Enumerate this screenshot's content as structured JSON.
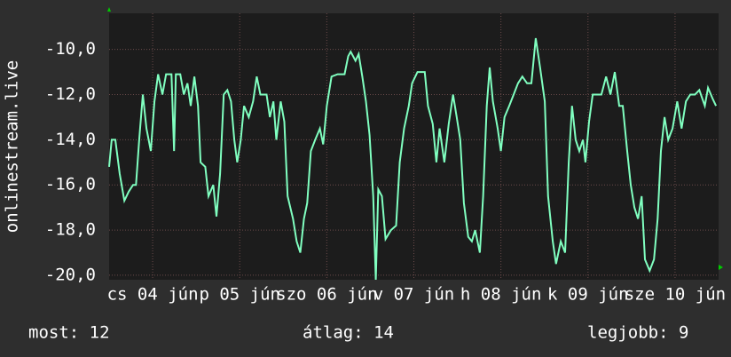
{
  "chart_data": {
    "type": "line",
    "ylabel": "onlinestream.live",
    "xlim": [
      0,
      168
    ],
    "ylim": [
      -20.2,
      -8.4
    ],
    "xticks": [
      {
        "value": 12,
        "label": "cs 04 jún"
      },
      {
        "value": 36,
        "label": "p 05 jún"
      },
      {
        "value": 60,
        "label": "szo 06 jún"
      },
      {
        "value": 84,
        "label": "v 07 jún"
      },
      {
        "value": 108,
        "label": "h 08 jún"
      },
      {
        "value": 132,
        "label": "k 09 jún"
      },
      {
        "value": 156,
        "label": "sze 10 jún"
      }
    ],
    "yticks": [
      {
        "value": -20,
        "label": "-20,0"
      },
      {
        "value": -18,
        "label": "-18,0"
      },
      {
        "value": -16,
        "label": "-16,0"
      },
      {
        "value": -14,
        "label": "-14,0"
      },
      {
        "value": -12,
        "label": "-12,0"
      },
      {
        "value": -10,
        "label": "-10,0"
      }
    ],
    "grid": true,
    "series": [
      {
        "color": "#80ffc0",
        "x": [
          0,
          0.7,
          1.7,
          2.9,
          4.2,
          5.4,
          6.6,
          7.4,
          8.3,
          9.3,
          10.3,
          11.5,
          12.5,
          13.5,
          14.7,
          15.7,
          17.2,
          17.9,
          18.4,
          19.6,
          20.6,
          21.6,
          22.5,
          23.5,
          24.5,
          25.2,
          26.5,
          27.4,
          28.7,
          29.6,
          30.6,
          31.6,
          32.6,
          33.6,
          34.5,
          35.3,
          36.3,
          37.2,
          38.5,
          39.7,
          40.7,
          41.7,
          43.4,
          44.3,
          45.3,
          46.1,
          47.3,
          48.3,
          49.2,
          50.7,
          51.7,
          52.7,
          53.7,
          54.6,
          55.6,
          56.8,
          58.1,
          59.0,
          60.0,
          61.3,
          63.0,
          64.9,
          65.9,
          66.6,
          67.9,
          68.8,
          69.8,
          70.8,
          71.8,
          72.8,
          73.5,
          74.2,
          75.2,
          76.2,
          77.7,
          79.1,
          80.1,
          81.3,
          82.6,
          83.5,
          85.0,
          87.0,
          87.9,
          89.2,
          90.2,
          91.1,
          92.4,
          93.6,
          94.8,
          95.8,
          96.8,
          97.8,
          99.0,
          100.0,
          100.9,
          102.2,
          103.1,
          104.1,
          104.9,
          105.8,
          107.1,
          108.0,
          109.0,
          110.3,
          111.5,
          112.7,
          113.9,
          115.2,
          116.4,
          117.6,
          118.8,
          120.1,
          121.0,
          122.3,
          123.2,
          124.5,
          125.7,
          126.7,
          127.6,
          128.6,
          129.6,
          130.6,
          131.3,
          132.3,
          133.3,
          134.5,
          135.7,
          137.0,
          138.2,
          139.4,
          140.6,
          141.6,
          142.8,
          143.8,
          144.8,
          145.8,
          146.8,
          147.7,
          149.0,
          150.2,
          151.2,
          152.1,
          153.1,
          154.1,
          155.3,
          156.6,
          157.8,
          159.0,
          160.2,
          161.5,
          162.7,
          164.2,
          165.1,
          166.4,
          167.3
        ],
        "values": [
          -15.2,
          -14,
          -14,
          -15.5,
          -16.7,
          -16.3,
          -16,
          -16,
          -14,
          -12,
          -13.5,
          -14.5,
          -12.3,
          -11.1,
          -12,
          -11.1,
          -11.1,
          -14.5,
          -11.1,
          -11.1,
          -12,
          -11.5,
          -12.5,
          -11.2,
          -12.5,
          -15,
          -15.2,
          -16.5,
          -16,
          -17.4,
          -15.5,
          -12,
          -11.8,
          -12.3,
          -14,
          -15,
          -14,
          -12.5,
          -13,
          -12.3,
          -11.2,
          -12,
          -12,
          -13,
          -12.3,
          -14,
          -12.3,
          -13.2,
          -16.5,
          -17.5,
          -18.5,
          -19,
          -17.5,
          -16.8,
          -14.5,
          -14,
          -13.5,
          -14.2,
          -12.5,
          -11.2,
          -11.1,
          -11.1,
          -10.3,
          -10.1,
          -10.5,
          -10.2,
          -11.2,
          -12.3,
          -13.8,
          -16.5,
          -20.2,
          -16.2,
          -16.5,
          -18.4,
          -18,
          -17.8,
          -15,
          -13.5,
          -12.5,
          -11.5,
          -11,
          -11,
          -12.5,
          -13.3,
          -15,
          -13.5,
          -15,
          -13.3,
          -12,
          -13,
          -14,
          -16.8,
          -18.3,
          -18.5,
          -18,
          -19,
          -16.5,
          -12.5,
          -10.8,
          -12.3,
          -13.5,
          -14.5,
          -13,
          -12.5,
          -12,
          -11.5,
          -11.2,
          -11.5,
          -11.5,
          -9.5,
          -10.8,
          -12.3,
          -16.5,
          -18.5,
          -19.5,
          -18.5,
          -19,
          -15,
          -12.5,
          -14,
          -14.5,
          -14,
          -15,
          -13.2,
          -12,
          -12,
          -12,
          -11.2,
          -12,
          -11,
          -12.5,
          -12.5,
          -14.5,
          -16,
          -17,
          -17.5,
          -16.5,
          -19.3,
          -19.8,
          -19.3,
          -17.5,
          -14.5,
          -13,
          -14,
          -13.5,
          -12.3,
          -13.5,
          -12.3,
          -12,
          -12,
          -11.8,
          -12.5,
          -11.7,
          -12.2,
          -12.5
        ]
      }
    ]
  },
  "footer": {
    "current": "most: 12",
    "average": "átlag: 14",
    "best": "legjobb: 9"
  }
}
